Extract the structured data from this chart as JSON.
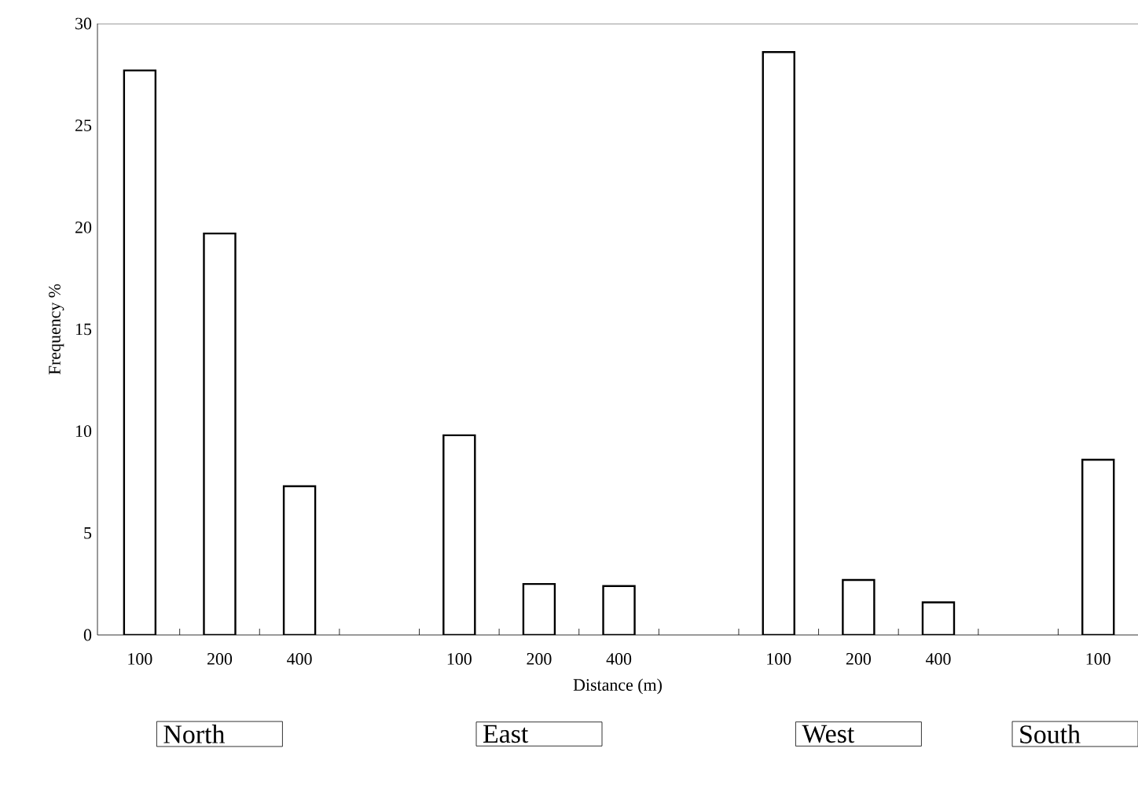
{
  "chart_data": {
    "type": "bar",
    "xlabel": "Distance (m)",
    "ylabel": "Frequency %",
    "categories": [
      "100",
      "200",
      "400",
      null,
      "100",
      "200",
      "400",
      null,
      "100",
      "200",
      "400",
      null,
      "100"
    ],
    "values": [
      27.7,
      19.7,
      7.3,
      null,
      9.8,
      2.5,
      2.4,
      null,
      28.6,
      2.7,
      1.6,
      null,
      8.6
    ],
    "color": "#ffffff",
    "ylim": [
      0,
      30
    ],
    "yticks": [
      0,
      5,
      10,
      15,
      20,
      25,
      30
    ],
    "annotations": [
      "North",
      "East",
      "West",
      "South"
    ]
  }
}
